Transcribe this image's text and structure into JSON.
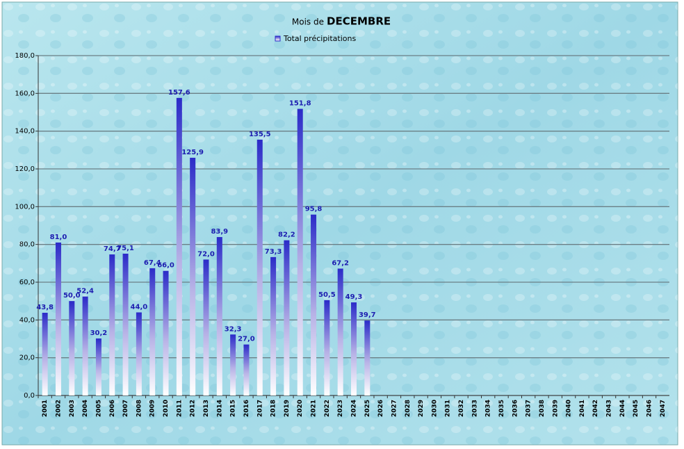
{
  "chart_data": {
    "type": "bar",
    "title_parts": [
      "Mois de",
      "DECEMBRE"
    ],
    "categories": [
      "2001",
      "2002",
      "2003",
      "2004",
      "2005",
      "2006",
      "2007",
      "2008",
      "2009",
      "2010",
      "2011",
      "2012",
      "2013",
      "2014",
      "2015",
      "2016",
      "2017",
      "2018",
      "2019",
      "2020",
      "2021",
      "2022",
      "2023",
      "2024",
      "2025",
      "2026",
      "2027",
      "2028",
      "2029",
      "2030",
      "2031",
      "2032",
      "2033",
      "2034",
      "2035",
      "2036",
      "2037",
      "2038",
      "2039",
      "2040",
      "2041",
      "2042",
      "2043",
      "2044",
      "2045",
      "2046",
      "2047"
    ],
    "series": [
      {
        "name": "Total précipitations",
        "color": "#2b2bc8",
        "values": [
          43.8,
          81.0,
          50.0,
          52.4,
          30.2,
          74.7,
          75.1,
          44.0,
          67.4,
          66.0,
          157.6,
          125.9,
          72.0,
          83.9,
          32.3,
          27.0,
          135.5,
          73.3,
          82.2,
          151.8,
          95.8,
          50.5,
          67.2,
          49.3,
          39.7,
          null,
          null,
          null,
          null,
          null,
          null,
          null,
          null,
          null,
          null,
          null,
          null,
          null,
          null,
          null,
          null,
          null,
          null,
          null,
          null,
          null,
          null
        ],
        "value_labels": [
          "43,8",
          "81,0",
          "50,0",
          "52,4",
          "30,2",
          "74,7",
          "75,1",
          "44,0",
          "67,4",
          "66,0",
          "157,6",
          "125,9",
          "72,0",
          "83,9",
          "32,3",
          "27,0",
          "135,5",
          "73,3",
          "82,2",
          "151,8",
          "95,8",
          "50,5",
          "67,2",
          "49,3",
          "39,7",
          null,
          null,
          null,
          null,
          null,
          null,
          null,
          null,
          null,
          null,
          null,
          null,
          null,
          null,
          null,
          null,
          null,
          null,
          null,
          null,
          null,
          null
        ]
      }
    ],
    "ylim": [
      0,
      180
    ],
    "yticks": [
      {
        "value": 0,
        "label": "0,0"
      },
      {
        "value": 20,
        "label": "20,0"
      },
      {
        "value": 40,
        "label": "40,0"
      },
      {
        "value": 60,
        "label": "60,0"
      },
      {
        "value": 80,
        "label": "80,0"
      },
      {
        "value": 100,
        "label": "100,0"
      },
      {
        "value": 120,
        "label": "120,0"
      },
      {
        "value": 140,
        "label": "140,0"
      },
      {
        "value": 160,
        "label": "160,0"
      },
      {
        "value": 180,
        "label": "180,0"
      }
    ],
    "grid": true,
    "legend": "top"
  }
}
